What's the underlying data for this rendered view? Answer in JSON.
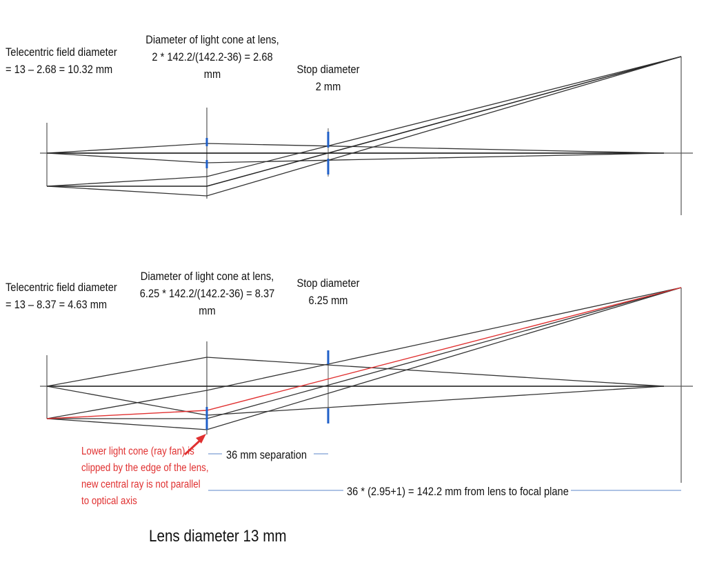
{
  "colors": {
    "ray": "#333333",
    "marker": "#1f5fc8",
    "guide": "#5b86c8",
    "red": "#e03030",
    "text": "#111111"
  },
  "top_panel": {
    "telecentric": [
      "Telecentric field diameter",
      "= 13 – 2.68 = 10.32 mm"
    ],
    "cone": [
      "Diameter of light cone at lens,",
      "2 * 142.2/(142.2-36) = 2.68",
      "mm"
    ],
    "stop": [
      "Stop diameter",
      "2 mm"
    ]
  },
  "bottom_panel": {
    "telecentric": [
      "Telecentric field diameter",
      "= 13 – 8.37 = 4.63 mm"
    ],
    "cone": [
      "Diameter of light cone at lens,",
      "6.25 * 142.2/(142.2-36) = 8.37",
      "mm"
    ],
    "stop": [
      "Stop diameter",
      "6.25 mm"
    ],
    "note": [
      "Lower light cone (ray fan) is",
      "clipped by the edge of the lens,",
      "new central ray is not parallel",
      "to optical axis"
    ],
    "separation": "36 mm separation",
    "focal": "36 * (2.95+1) = 142.2 mm from lens to focal plane",
    "lens": "Lens diameter 13 mm"
  }
}
